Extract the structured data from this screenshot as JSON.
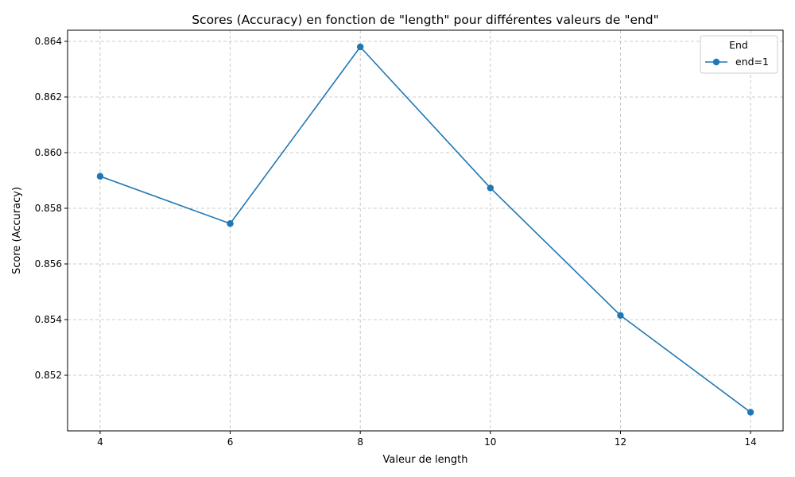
{
  "chart_data": {
    "type": "line",
    "title": "Scores (Accuracy) en fonction de \"length\" pour différentes valeurs de \"end\"",
    "xlabel": "Valeur de length",
    "ylabel": "Score (Accuracy)",
    "x": [
      4,
      6,
      8,
      10,
      12,
      14
    ],
    "xticks": [
      4,
      6,
      8,
      10,
      12,
      14
    ],
    "yticks": [
      0.852,
      0.854,
      0.856,
      0.858,
      0.86,
      0.862,
      0.864
    ],
    "xlim": [
      3.5,
      14.5
    ],
    "ylim": [
      0.85,
      0.8644
    ],
    "grid": true,
    "legend": {
      "title": "End",
      "position": "top-right"
    },
    "series": [
      {
        "name": "end=1",
        "color": "#1f77b4",
        "marker": "circle",
        "values": [
          0.85915,
          0.85745,
          0.8638,
          0.85873,
          0.85415,
          0.85067
        ]
      }
    ]
  }
}
